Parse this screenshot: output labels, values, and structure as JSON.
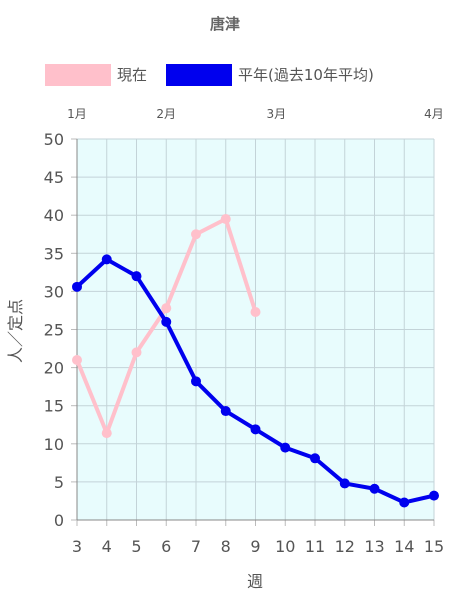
{
  "chart_data": {
    "type": "line",
    "title": "唐津",
    "xlabel": "週",
    "ylabel": "人／定点",
    "x": [
      3,
      4,
      5,
      6,
      7,
      8,
      9,
      10,
      11,
      12,
      13,
      14,
      15
    ],
    "xlim": [
      3,
      15
    ],
    "ylim": [
      0,
      50
    ],
    "yticks": [
      0,
      5,
      10,
      15,
      20,
      25,
      30,
      35,
      40,
      45,
      50
    ],
    "month_labels": [
      {
        "label": "1月",
        "x": 3
      },
      {
        "label": "2月",
        "x": 6
      },
      {
        "label": "3月",
        "x": 9.7
      },
      {
        "label": "4月",
        "x": 15
      }
    ],
    "grid": true,
    "legend": "top",
    "plot_background": "#e8fcfd",
    "series": [
      {
        "name": "現在",
        "color": "#ffc0cb",
        "values": [
          21,
          11.4,
          22,
          27.8,
          37.5,
          39.5,
          27.3,
          null,
          null,
          null,
          null,
          null,
          null
        ]
      },
      {
        "name": "平年(過去10年平均)",
        "color": "#0000ee",
        "values": [
          30.6,
          34.2,
          32,
          26,
          18.2,
          14.3,
          11.9,
          9.5,
          8.1,
          4.8,
          4.1,
          2.3,
          3.2
        ]
      }
    ]
  }
}
